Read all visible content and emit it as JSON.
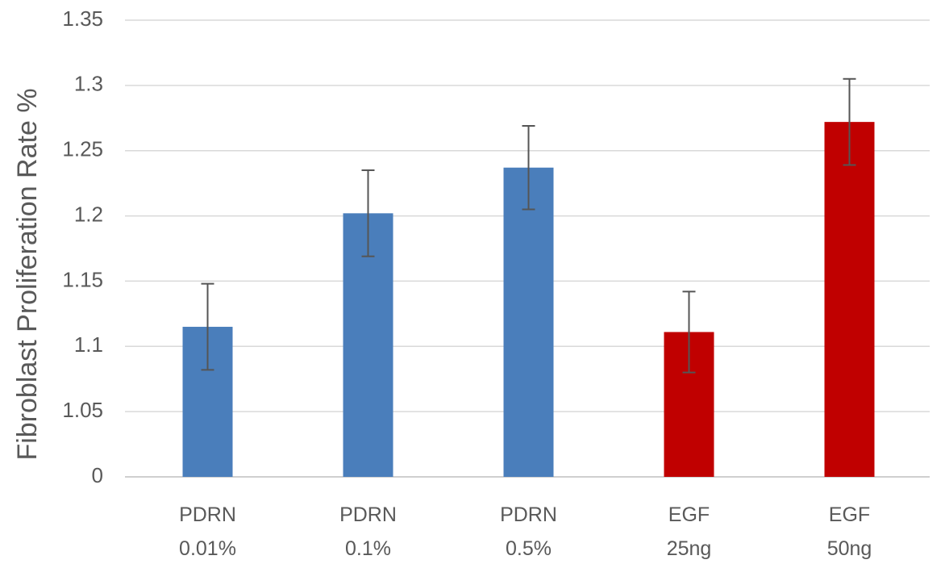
{
  "chart_data": {
    "type": "bar",
    "y_label": "Fibroblast Proliferation Rate %",
    "categories": [
      "PDRN\n0.01%",
      "PDRN\n0.1%",
      "PDRN\n0.5%",
      "EGF\n25ng",
      "EGF\n50ng"
    ],
    "values": [
      1.115,
      1.202,
      1.237,
      1.111,
      1.272
    ],
    "errors": [
      0.033,
      0.033,
      0.032,
      0.031,
      0.033
    ],
    "colors": [
      "#4a7ebb",
      "#4a7ebb",
      "#4a7ebb",
      "#c00000",
      "#c00000"
    ],
    "ylim": [
      0,
      1.35
    ],
    "y_break": [
      0,
      1.0
    ],
    "yticks": [
      0,
      1.05,
      1.1,
      1.15,
      1.2,
      1.25,
      1.3,
      1.35
    ],
    "grid": true
  }
}
